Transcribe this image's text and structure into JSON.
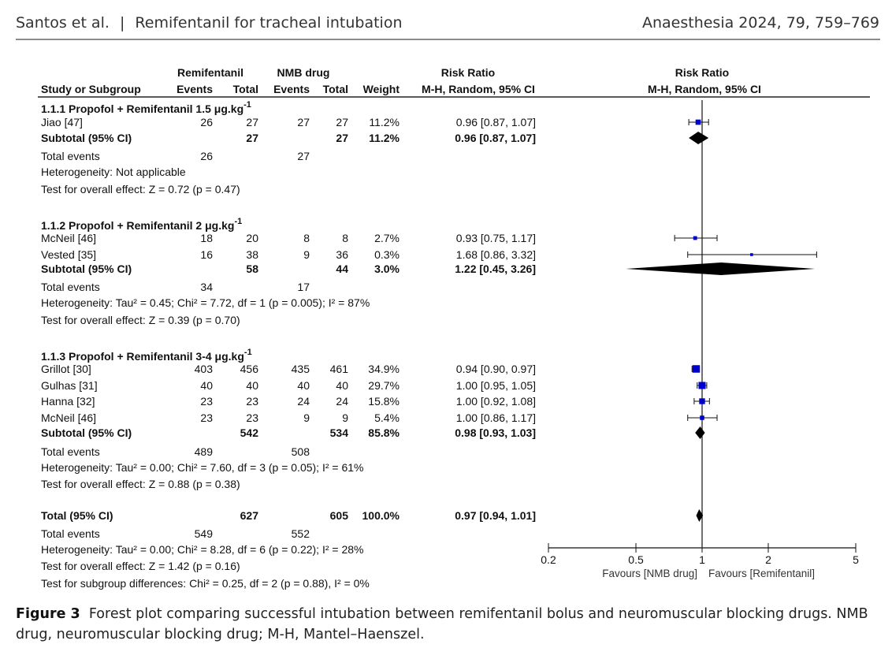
{
  "header": {
    "authors": "Santos et al.",
    "separator": "|",
    "short_title": "Remifentanil for tracheal intubation",
    "journal": "Anaesthesia 2024, 79, 759–769"
  },
  "table": {
    "group_headers": {
      "remifentanil": "Remifentanil",
      "nmb": "NMB drug",
      "rr_col": "Risk Ratio",
      "rr_plot": "Risk Ratio"
    },
    "columns": {
      "study": "Study or Subgroup",
      "events1": "Events",
      "total1": "Total",
      "events2": "Events",
      "total2": "Total",
      "weight": "Weight",
      "ci": "M-H, Random, 95% CI",
      "ci_plot": "M-H, Random, 95% CI"
    },
    "subgroups": [
      {
        "title": "1.1.1 Propofol + Remifentanil 1.5 μg.kg",
        "sup": "-1",
        "studies": [
          {
            "name": "Jiao [47]",
            "e1": "26",
            "t1": "27",
            "e2": "27",
            "t2": "27",
            "weight": "11.2%",
            "ci": "0.96 [0.87, 1.07]"
          }
        ],
        "subtotal": {
          "label": "Subtotal (95% CI)",
          "t1": "27",
          "t2": "27",
          "weight": "11.2%",
          "ci": "0.96 [0.87, 1.07]"
        },
        "total_events": {
          "label": "Total events",
          "e1": "26",
          "e2": "27"
        },
        "heterogeneity": "Heterogeneity: Not applicable",
        "overall": "Test for overall effect: Z = 0.72 (p = 0.47)"
      },
      {
        "title": "1.1.2 Propofol + Remifentanil 2 μg.kg",
        "sup": "-1",
        "studies": [
          {
            "name": "McNeil [46]",
            "e1": "18",
            "t1": "20",
            "e2": "8",
            "t2": "8",
            "weight": "2.7%",
            "ci": "0.93 [0.75, 1.17]"
          },
          {
            "name": "Vested [35]",
            "e1": "16",
            "t1": "38",
            "e2": "9",
            "t2": "36",
            "weight": "0.3%",
            "ci": "1.68 [0.86, 3.32]"
          }
        ],
        "subtotal": {
          "label": "Subtotal (95% CI)",
          "t1": "58",
          "t2": "44",
          "weight": "3.0%",
          "ci": "1.22 [0.45, 3.26]"
        },
        "total_events": {
          "label": "Total events",
          "e1": "34",
          "e2": "17"
        },
        "heterogeneity": "Heterogeneity: Tau² = 0.45; Chi² = 7.72, df = 1 (p = 0.005); I² = 87%",
        "overall": "Test for overall effect: Z = 0.39 (p = 0.70)"
      },
      {
        "title": "1.1.3 Propofol + Remifentanil 3-4 μg.kg",
        "sup": "-1",
        "studies": [
          {
            "name": "Grillot [30]",
            "e1": "403",
            "t1": "456",
            "e2": "435",
            "t2": "461",
            "weight": "34.9%",
            "ci": "0.94 [0.90, 0.97]"
          },
          {
            "name": "Gulhas [31]",
            "e1": "40",
            "t1": "40",
            "e2": "40",
            "t2": "40",
            "weight": "29.7%",
            "ci": "1.00 [0.95, 1.05]"
          },
          {
            "name": "Hanna [32]",
            "e1": "23",
            "t1": "23",
            "e2": "24",
            "t2": "24",
            "weight": "15.8%",
            "ci": "1.00 [0.92, 1.08]"
          },
          {
            "name": "McNeil [46]",
            "e1": "23",
            "t1": "23",
            "e2": "9",
            "t2": "9",
            "weight": "5.4%",
            "ci": "1.00 [0.86, 1.17]"
          }
        ],
        "subtotal": {
          "label": "Subtotal (95% CI)",
          "t1": "542",
          "t2": "534",
          "weight": "85.8%",
          "ci": "0.98 [0.93, 1.03]"
        },
        "total_events": {
          "label": "Total events",
          "e1": "489",
          "e2": "508"
        },
        "heterogeneity": "Heterogeneity: Tau² = 0.00; Chi² = 7.60, df = 3 (p = 0.05); I² = 61%",
        "overall": "Test for overall effect: Z = 0.88 (p = 0.38)"
      }
    ],
    "total": {
      "label": "Total (95% CI)",
      "t1": "627",
      "t2": "605",
      "weight": "100.0%",
      "ci": "0.97 [0.94, 1.01]"
    },
    "total_events": {
      "label": "Total events",
      "e1": "549",
      "e2": "552"
    },
    "footer": [
      "Heterogeneity: Tau² = 0.00; Chi² = 8.28, df = 6 (p = 0.22); I² = 28%",
      "Test for overall effect: Z = 1.42 (p = 0.16)",
      "Test for subgroup differences: Chi² = 0.25, df = 2 (p = 0.88), I² = 0%"
    ]
  },
  "chart_data": {
    "type": "forest",
    "scale": "log",
    "xlim": [
      0.2,
      5
    ],
    "xticks": [
      0.2,
      0.5,
      1,
      2,
      5
    ],
    "xtick_labels": [
      "0.2",
      "0.5",
      "1",
      "2",
      "5"
    ],
    "null_line": 1,
    "favours_left": "Favours [NMB drug]",
    "favours_right": "Favours [Remifentanil]",
    "study_marker_color": "#0000cc",
    "diamond_color": "#000000",
    "studies": [
      {
        "name": "Jiao [47]",
        "rr": 0.96,
        "lo": 0.87,
        "hi": 1.07,
        "weight": 11.2
      },
      {
        "name": "McNeil [46]",
        "rr": 0.93,
        "lo": 0.75,
        "hi": 1.17,
        "weight": 2.7
      },
      {
        "name": "Vested [35]",
        "rr": 1.68,
        "lo": 0.86,
        "hi": 3.32,
        "weight": 0.3
      },
      {
        "name": "Grillot [30]",
        "rr": 0.94,
        "lo": 0.9,
        "hi": 0.97,
        "weight": 34.9
      },
      {
        "name": "Gulhas [31]",
        "rr": 1.0,
        "lo": 0.95,
        "hi": 1.05,
        "weight": 29.7
      },
      {
        "name": "Hanna [32]",
        "rr": 1.0,
        "lo": 0.92,
        "hi": 1.08,
        "weight": 15.8
      },
      {
        "name": "McNeil [46]",
        "rr": 1.0,
        "lo": 0.86,
        "hi": 1.17,
        "weight": 5.4
      }
    ],
    "diamonds": [
      {
        "name": "Subtotal 1.1.1",
        "rr": 0.96,
        "lo": 0.87,
        "hi": 1.07
      },
      {
        "name": "Subtotal 1.1.2",
        "rr": 1.22,
        "lo": 0.45,
        "hi": 3.26
      },
      {
        "name": "Subtotal 1.1.3",
        "rr": 0.98,
        "lo": 0.93,
        "hi": 1.03
      },
      {
        "name": "Total",
        "rr": 0.97,
        "lo": 0.94,
        "hi": 1.01
      }
    ]
  },
  "caption": {
    "label": "Figure 3",
    "text": "Forest plot comparing successful intubation between remifentanil bolus and neuromuscular blocking drugs. NMB drug, neuromuscular blocking drug; M-H, Mantel–Haenszel."
  }
}
